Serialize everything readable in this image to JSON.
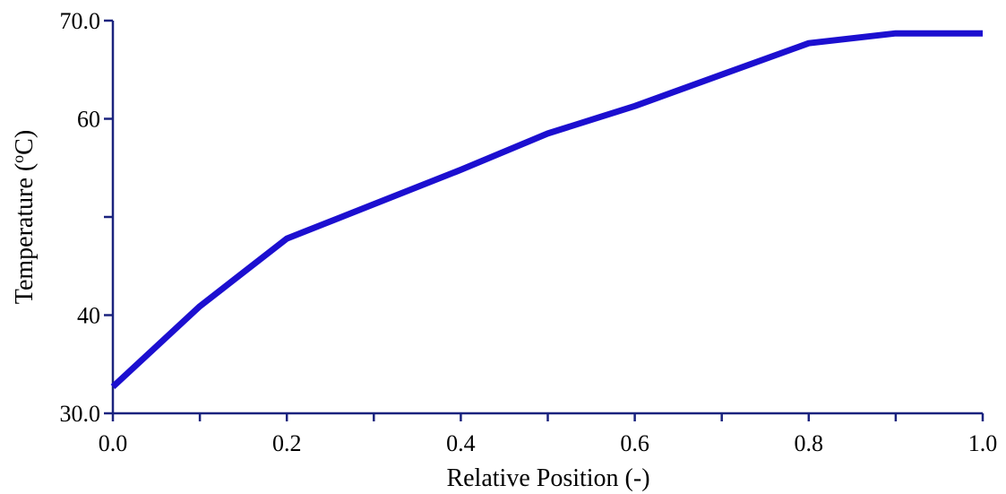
{
  "chart_data": {
    "type": "line",
    "title": "",
    "xlabel": "Relative Position (-)",
    "ylabel_main": "Temperature (",
    "ylabel_sup": "o",
    "ylabel_end": "C)",
    "xlim": [
      0.0,
      1.0
    ],
    "ylim": [
      30.0,
      70.0
    ],
    "x_ticks": [
      0.0,
      0.1,
      0.2,
      0.3,
      0.4,
      0.5,
      0.6,
      0.7,
      0.8,
      0.9,
      1.0
    ],
    "x_tick_labels": [
      {
        "value": 0.0,
        "label": "0.0"
      },
      {
        "value": 0.2,
        "label": "0.2"
      },
      {
        "value": 0.4,
        "label": "0.4"
      },
      {
        "value": 0.6,
        "label": "0.6"
      },
      {
        "value": 0.8,
        "label": "0.8"
      },
      {
        "value": 1.0,
        "label": "1.0"
      }
    ],
    "y_ticks": [
      30,
      40,
      50,
      60,
      70
    ],
    "y_tick_labels": [
      {
        "value": 30,
        "label": "30.0"
      },
      {
        "value": 40,
        "label": "40"
      },
      {
        "value": 60,
        "label": "60"
      },
      {
        "value": 70,
        "label": "70.0"
      }
    ],
    "grid": false,
    "axis_color": "#1a237e",
    "series": [
      {
        "color": "#1c0fd0",
        "x": [
          0.0,
          0.1,
          0.2,
          0.3,
          0.4,
          0.5,
          0.6,
          0.7,
          0.8,
          0.9,
          1.0
        ],
        "y": [
          32.7,
          40.9,
          47.8,
          51.3,
          54.8,
          58.5,
          61.3,
          64.5,
          67.7,
          68.7,
          68.7
        ]
      }
    ]
  }
}
